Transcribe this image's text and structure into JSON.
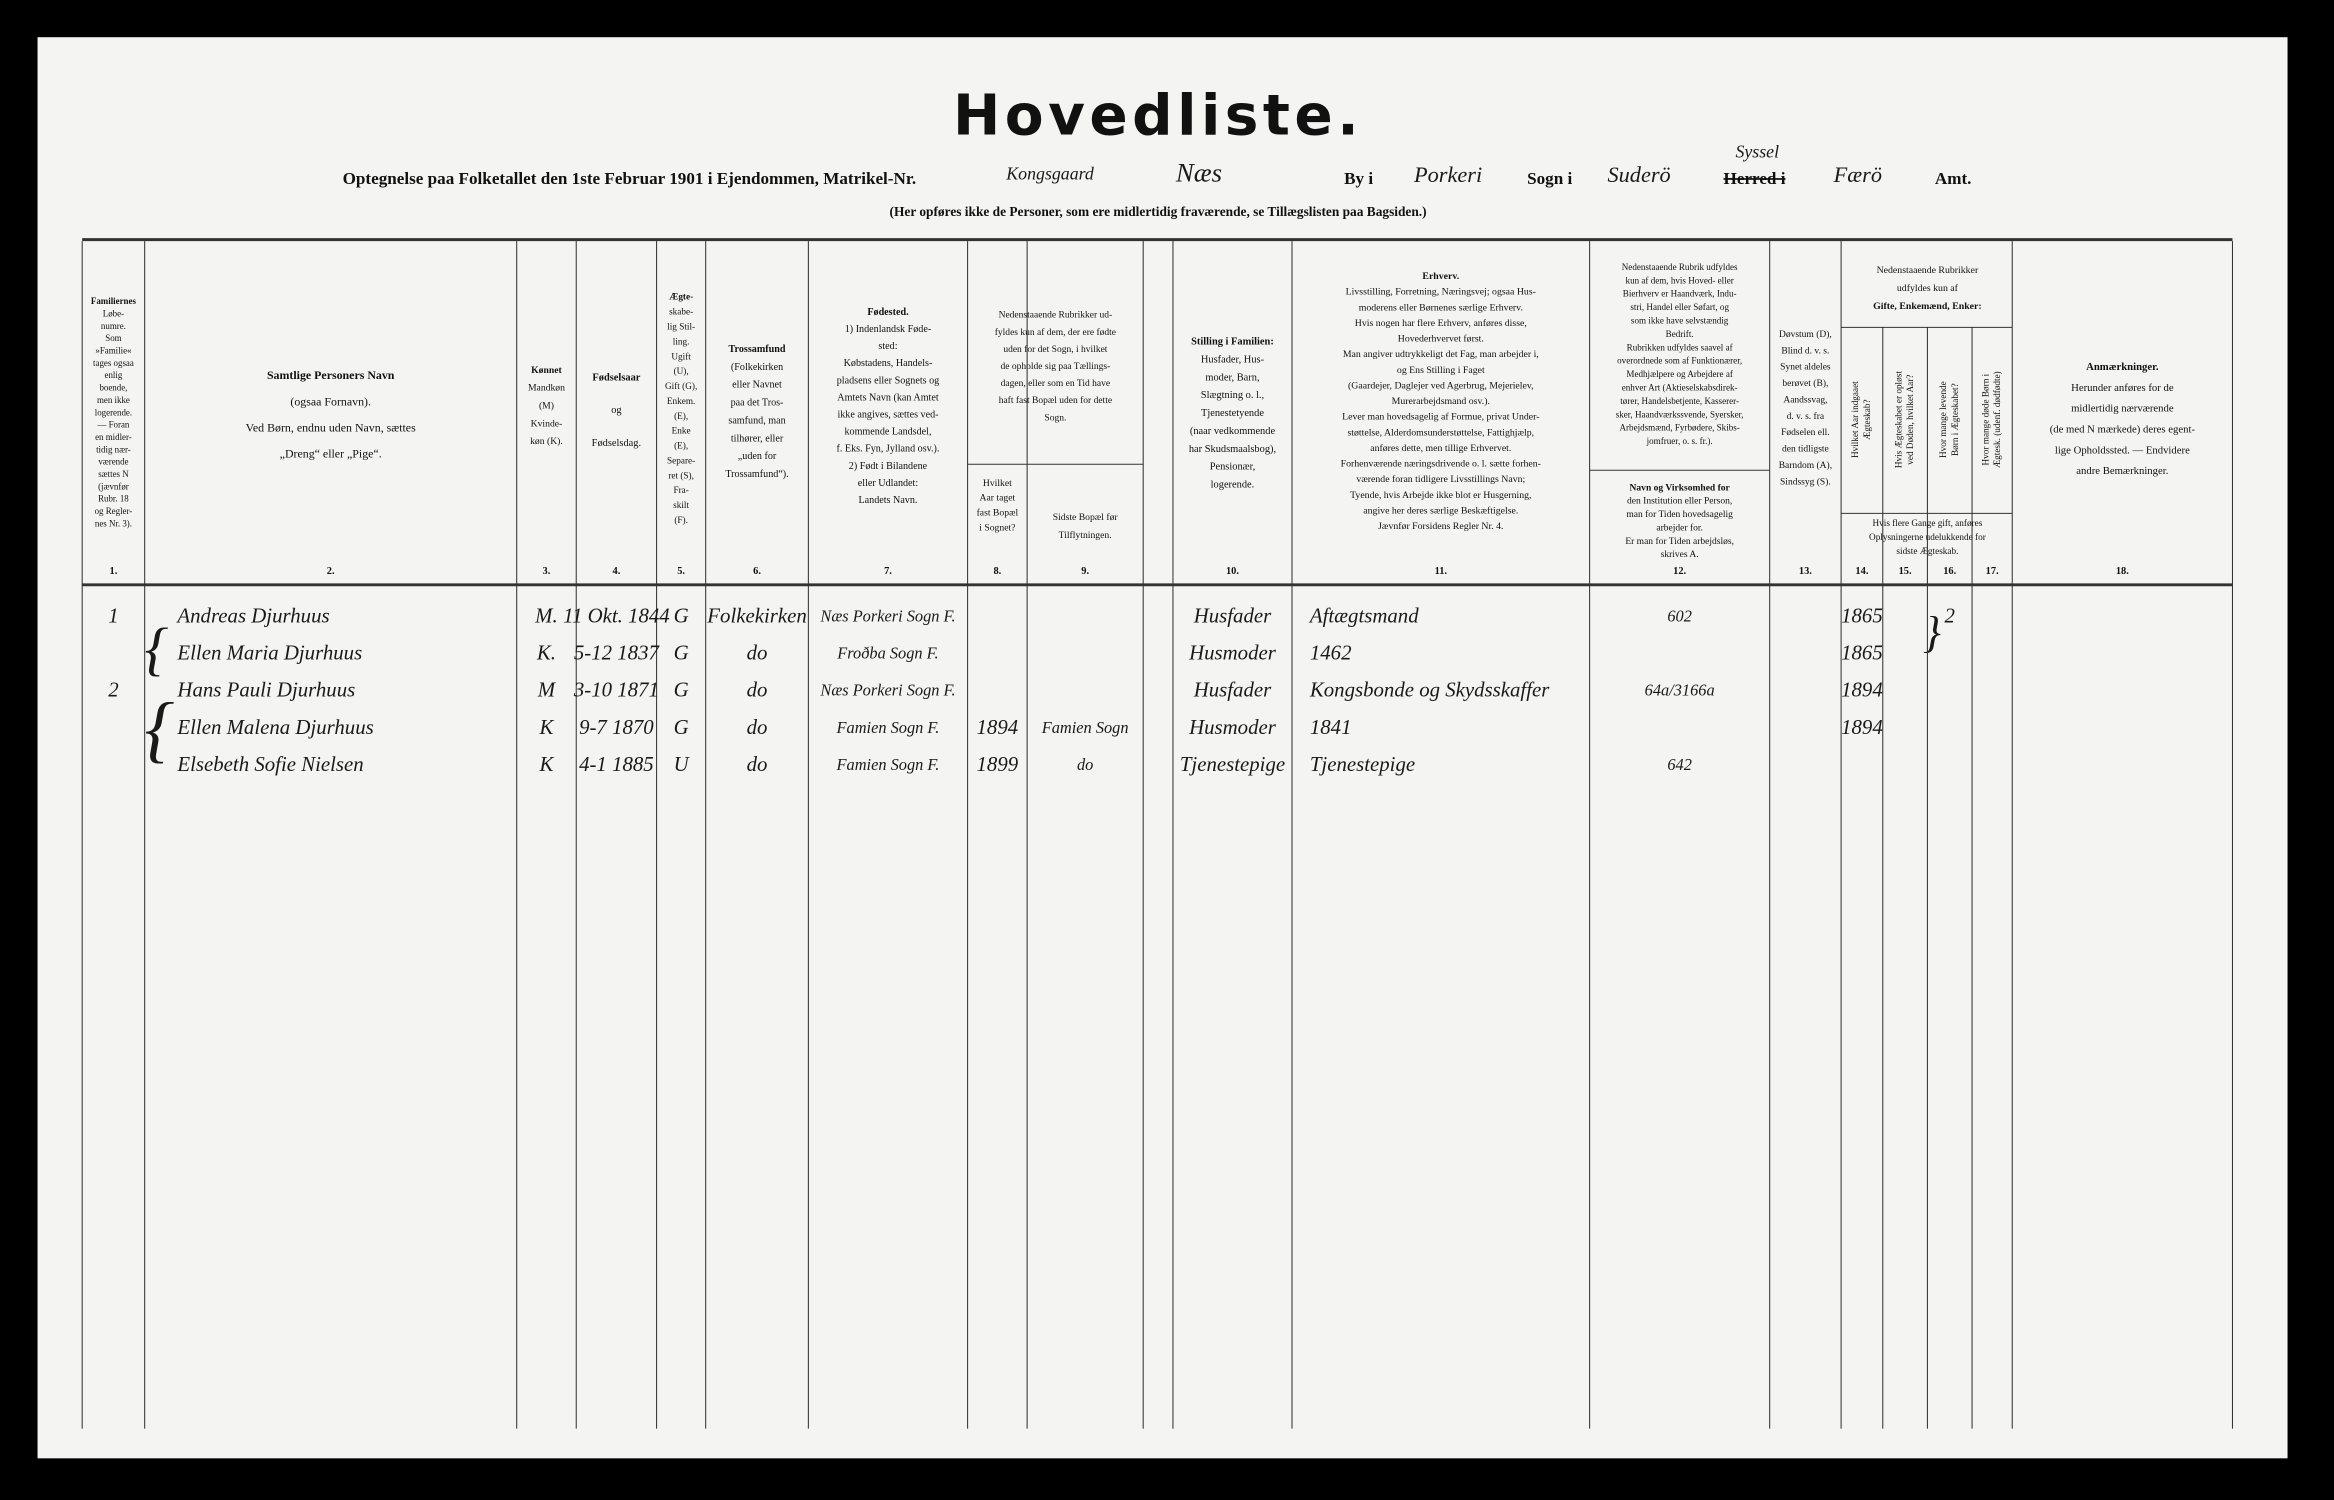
{
  "header": {
    "title": "Hovedliste.",
    "form": {
      "lead": "Optegnelse paa Folketallet den 1ste Februar 1901 i Ejendommen, Matrikel-Nr.",
      "matrikel": "Kongsgaard",
      "place": "Næs",
      "by_label": "By i",
      "by": "Porkeri",
      "sogn_label": "Sogn i",
      "sogn": "Suderö",
      "herred_label": "Herred i",
      "herred_correction": "Syssel",
      "amt_value": "Færö",
      "amt_label": "Amt."
    },
    "note": "(Her opføres ikke de Personer, som ere midlertidig fraværende, se Tillægslisten paa Bagsiden.)"
  },
  "table": {
    "columns": [
      {
        "number": "1.",
        "header": [
          "Familiernes",
          "Løbe-",
          "numre.",
          "Som",
          "»Familie«",
          "tages ogsaa",
          "enlig",
          "boende,",
          "men ikke",
          "logerende.",
          "— Foran",
          "en midler-",
          "tidig nær-",
          "værende",
          "sættes N",
          "(jævnfør",
          "Rubr. 18",
          "og Regler-",
          "nes Nr. 3)."
        ]
      },
      {
        "number": "2.",
        "header": [
          "Samtlige Personers Navn",
          "(ogsaa Fornavn).",
          "Ved Børn, endnu uden Navn, sættes",
          "„Dreng“ eller „Pige“."
        ]
      },
      {
        "number": "3.",
        "header": [
          "Kønnet",
          "Mandkøn",
          "(M)",
          "Kvinde-",
          "køn (K)."
        ]
      },
      {
        "number": "4.",
        "header": [
          "Fødselsaar",
          "og",
          "Fødselsdag."
        ]
      },
      {
        "number": "5.",
        "header": [
          "Ægte-",
          "skabe-",
          "lig Stil-",
          "ling.",
          "Ugift",
          "(U),",
          "Gift (G),",
          "Enkem.",
          "(E),",
          "Enke",
          "(E),",
          "Separe-",
          "ret (S),",
          "Fra-",
          "skilt",
          "(F)."
        ]
      },
      {
        "number": "6.",
        "header": [
          "Trossamfund",
          "(Folkekirken",
          "eller Navnet",
          "paa det Tros-",
          "samfund, man",
          "tilhører, eller",
          "„uden for",
          "Trossamfund“)."
        ]
      },
      {
        "number": "7.",
        "header": [
          "Fødested.",
          "1) Indenlandsk Føde-",
          "sted:",
          "Købstadens, Handels-",
          "pladsens eller Sognets og",
          "Amtets Navn (kan Amtet",
          "ikke angives, sættes ved-",
          "kommende Landsdel,",
          "f. Eks. Fyn, Jylland osv.).",
          "2) Født i Bilandene",
          "eller Udlandet:",
          "Landets Navn."
        ]
      },
      {
        "number": "8.",
        "header": [
          "Hvilket",
          "Aar taget",
          "fast Bopæl",
          "i Sognet?"
        ]
      },
      {
        "number": "9.",
        "header": [
          "Sidste Bopæl før",
          "Tilflytningen."
        ]
      },
      {
        "number": "10.",
        "header": [
          "Stilling i Familien:",
          "Husfader, Hus-",
          "moder, Barn,",
          "Slægtning o. l.,",
          "Tjenestetyende",
          "(naar vedkommende",
          "har Skudsmaalsbog),",
          "Pensionær,",
          "logerende."
        ]
      },
      {
        "number": "11.",
        "header": [
          "Erhverv.",
          "Livsstilling, Forretning, Næringsvej; ogsaa Hus-",
          "moderens eller Børnenes særlige Erhverv.",
          "Hvis nogen har flere Erhverv, anføres disse,",
          "Hovederhvervet først.",
          "Man angiver udtrykkeligt det Fag, man arbejder i,",
          "og Ens Stilling i Faget",
          "(Gaardejer, Daglejer ved Agerbrug, Mejerielev,",
          "Murerarbejdsmand osv.).",
          "Lever man hovedsagelig af Formue, privat Under-",
          "støttelse, Alderdomsunderstøttelse, Fattighjælp,",
          "anføres dette, men tillige Erhvervet.",
          "Forhenværende næringsdrivende o. l. sætte forhen-",
          "værende foran tidligere Livsstillings Navn;",
          "Tyende, hvis Arbejde ikke blot er Husgerning,",
          "angive her deres særlige Beskæftigelse.",
          "Jævnfør Forsidens Regler Nr. 4."
        ]
      },
      {
        "number": "12.",
        "header": [
          "Nedenstaaende Rubrik udfyldes",
          "kun af dem, hvis Hoved- eller",
          "Bierhverv er Haandværk, Indu-",
          "stri, Handel eller Søfart, og",
          "som ikke have selvstændig",
          "Bedrift.",
          "Rubrikken udfyldes saavel af",
          "overordnede som af Funktionærer,",
          "Medhjælpere og Arbejdere af",
          "enhver Art (Aktieselskabsdirek-",
          "tører, Handelsbetjente, Kasserer-",
          "sker, Haandværkssvende, Syersker,",
          "Arbejdsmænd, Fyrbødere, Skibs-",
          "jomfruer, o. s. fr.)."
        ],
        "subheader": [
          "Navn og Virksomhed for",
          "den Institution eller Person,",
          "man for Tiden hovedsagelig",
          "arbejder for.",
          "Er man for Tiden arbejdsløs,",
          "skrives A."
        ]
      },
      {
        "number": "13.",
        "header": [
          "Døvstum (D),",
          "Blind d. v. s.",
          "Synet aldeles",
          "berøvet (B),",
          "Aandssvag,",
          "d. v. s. fra",
          "Fødselen ell.",
          "den tidligste",
          "Barndom (A),",
          "Sindssyg (S)."
        ]
      },
      {
        "number": "14.",
        "header": [
          "Hvilket Aar indgaaet",
          "Ægteskab?"
        ]
      },
      {
        "number": "15.",
        "header": [
          "Hvis Ægteskabet er opløst",
          "ved Døden, hvilket Aar?"
        ]
      },
      {
        "number": "16.",
        "header": [
          "Hvor mange levende",
          "Børn i Ægteskabet?"
        ]
      },
      {
        "number": "17.",
        "header": [
          "Hvor mange døde Børn i",
          "Ægtesk. (udenf. dødfødte)"
        ]
      },
      {
        "number": "18.",
        "header": [
          "Anmærkninger.",
          "Herunder anføres for de",
          "midlertidig nærværende",
          "(de med N mærkede) deres egent-",
          "lige Opholdssted. — Endvidere",
          "andre Bemærkninger."
        ]
      }
    ],
    "group_8_9": [
      "Nedenstaaende Rubrikker ud-",
      "fyldes kun af dem, der ere fødte",
      "uden for det Sogn, i hvilket",
      "de opholde sig paa Tællings-",
      "dagen, eller som en Tid have",
      "haft fast Bopæl uden for dette",
      "Sogn."
    ],
    "group_14_17_top": [
      "Nedenstaaende Rubrikker",
      "udfyldes kun af",
      "Gifte, Enkemænd, Enker:"
    ],
    "group_14_17_bottom": [
      "Hvis flere Gange gift, anføres",
      "Oplysningerne udelukkende for",
      "sidste Ægteskab."
    ],
    "rows": [
      [
        "1",
        "Andreas Djurhuus",
        "M.",
        "11 Okt. 1844",
        "G",
        "Folkekirken",
        "Næs Porkeri Sogn F.",
        null,
        null,
        "Husfader",
        "Aftægtsmand",
        "602",
        null,
        "1865",
        null,
        "2",
        null,
        null
      ],
      [
        null,
        "Ellen Maria Djurhuus",
        "K.",
        "5-12 1837",
        "G",
        "do",
        "Froðba Sogn F.",
        null,
        null,
        "Husmoder",
        "1462",
        null,
        null,
        "1865",
        null,
        null,
        null,
        null
      ],
      [
        "2",
        "Hans Pauli Djurhuus",
        "M",
        "3-10 1871",
        "G",
        "do",
        "Næs Porkeri Sogn F.",
        null,
        null,
        "Husfader",
        "Kongsbonde og Skydsskaffer",
        "64a/3166a",
        null,
        "1894",
        null,
        null,
        null,
        null
      ],
      [
        null,
        "Ellen Malena Djurhuus",
        "K",
        "9-7 1870",
        "G",
        "do",
        "Famien Sogn F.",
        "1894",
        "Famien Sogn",
        "Husmoder",
        "1841",
        null,
        null,
        "1894",
        null,
        null,
        null,
        null
      ],
      [
        null,
        "Elsebeth Sofie Nielsen",
        "K",
        "4-1 1885",
        "U",
        "do",
        "Famien Sogn F.",
        "1899",
        "do",
        "Tjenestepige",
        "Tjenestepige",
        "642",
        null,
        null,
        null,
        null,
        null,
        null
      ]
    ]
  }
}
